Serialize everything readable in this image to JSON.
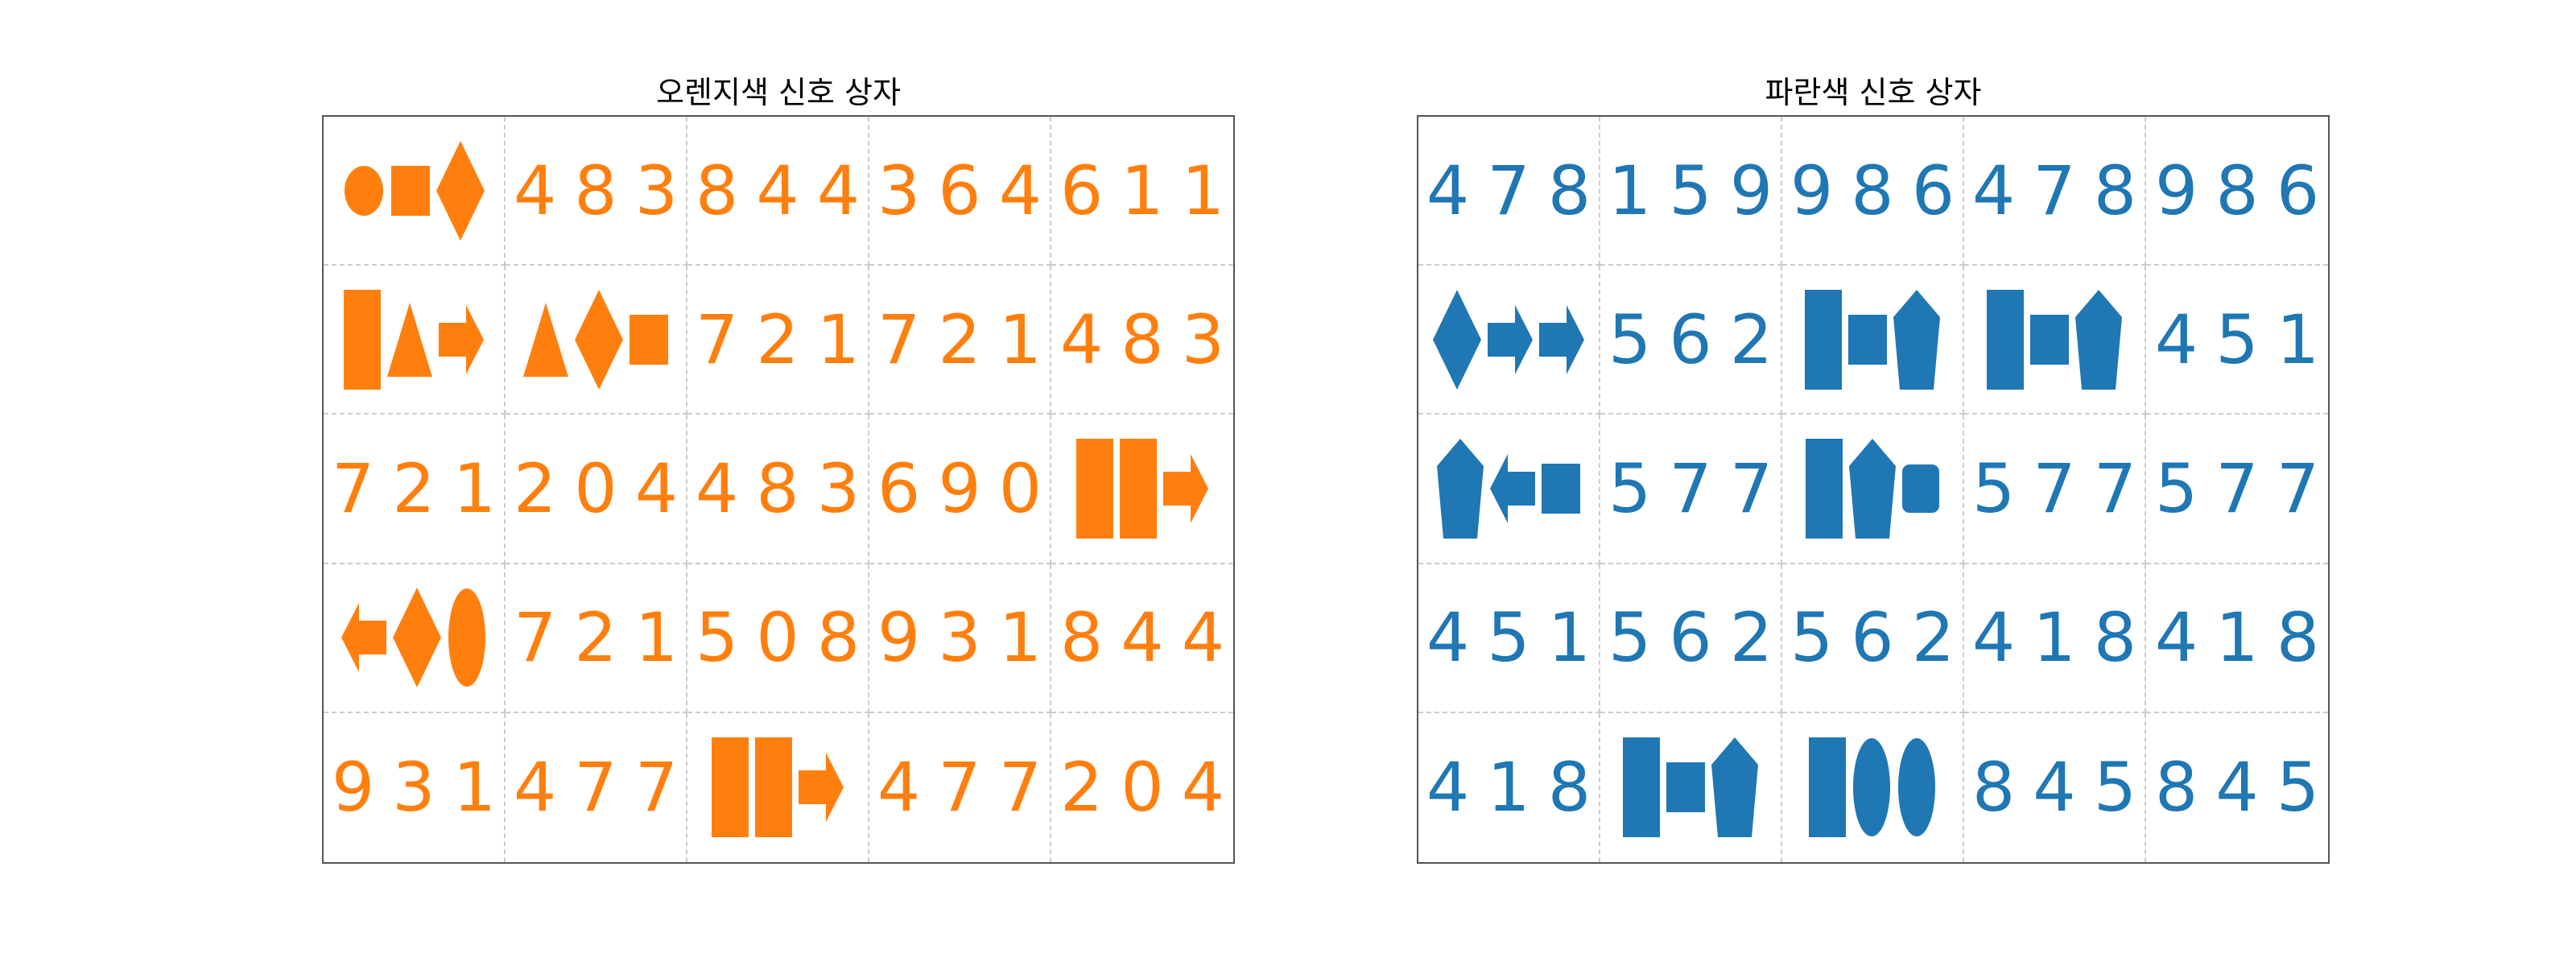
{
  "colors": {
    "orange": "#ff7f0e",
    "blue": "#1f77b4"
  },
  "panels": [
    {
      "title": "오렌지색 신호 상자",
      "color": "orange",
      "cells": [
        [
          {
            "shapes": [
              "circle",
              "square",
              "diamond"
            ]
          },
          {
            "text": "483"
          },
          {
            "text": "844"
          },
          {
            "text": "364"
          },
          {
            "text": "611"
          }
        ],
        [
          {
            "shapes": [
              "tall-rect",
              "triangle",
              "arrow-right"
            ]
          },
          {
            "shapes": [
              "triangle",
              "diamond",
              "square"
            ]
          },
          {
            "text": "721"
          },
          {
            "text": "721"
          },
          {
            "text": "483"
          }
        ],
        [
          {
            "text": "721"
          },
          {
            "text": "204"
          },
          {
            "text": "483"
          },
          {
            "text": "690"
          },
          {
            "shapes": [
              "tall-rect",
              "tall-rect",
              "arrow-right"
            ]
          }
        ],
        [
          {
            "shapes": [
              "arrow-left",
              "diamond",
              "ellipse"
            ]
          },
          {
            "text": "721"
          },
          {
            "text": "508"
          },
          {
            "text": "931"
          },
          {
            "text": "844"
          }
        ],
        [
          {
            "text": "931"
          },
          {
            "text": "477"
          },
          {
            "shapes": [
              "tall-rect",
              "tall-rect",
              "arrow-right"
            ]
          },
          {
            "text": "477"
          },
          {
            "text": "204"
          }
        ]
      ]
    },
    {
      "title": "파란색 신호 상자",
      "color": "blue",
      "cells": [
        [
          {
            "text": "478"
          },
          {
            "text": "159"
          },
          {
            "text": "986"
          },
          {
            "text": "478"
          },
          {
            "text": "986"
          }
        ],
        [
          {
            "shapes": [
              "diamond",
              "arrow-right",
              "arrow-right"
            ]
          },
          {
            "text": "562"
          },
          {
            "shapes": [
              "tall-rect",
              "square",
              "pentagon"
            ]
          },
          {
            "shapes": [
              "tall-rect",
              "square",
              "pentagon"
            ]
          },
          {
            "text": "451"
          }
        ],
        [
          {
            "shapes": [
              "pentagon",
              "arrow-left",
              "square"
            ]
          },
          {
            "text": "577"
          },
          {
            "shapes": [
              "tall-rect",
              "pentagon",
              "rounded-square"
            ]
          },
          {
            "text": "577"
          },
          {
            "text": "577"
          }
        ],
        [
          {
            "text": "451"
          },
          {
            "text": "562"
          },
          {
            "text": "562"
          },
          {
            "text": "418"
          },
          {
            "text": "418"
          }
        ],
        [
          {
            "text": "418"
          },
          {
            "shapes": [
              "tall-rect",
              "square",
              "pentagon"
            ]
          },
          {
            "shapes": [
              "tall-rect",
              "ellipse",
              "ellipse"
            ]
          },
          {
            "text": "845"
          },
          {
            "text": "845"
          }
        ]
      ]
    }
  ]
}
